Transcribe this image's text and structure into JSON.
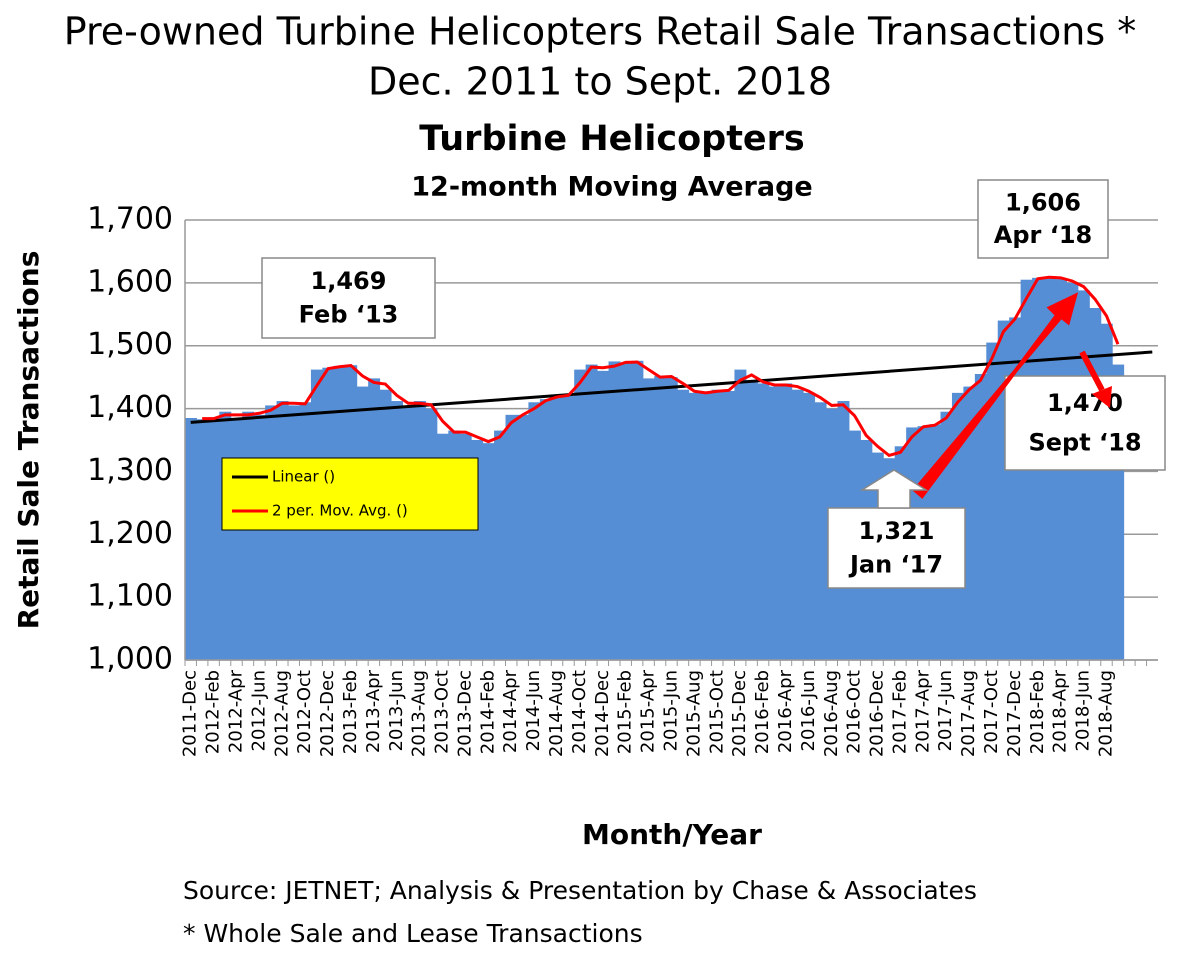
{
  "chart_data": {
    "type": "bar",
    "title": "Pre-owned Turbine Helicopters Retail Sale Transactions *",
    "title_line2": "Dec. 2011 to Sept. 2018",
    "subtitle": "Turbine Helicopters",
    "subtitle2": "12-month Moving Average",
    "y_label": "Retail Sale Transactions",
    "x_label": "Month/Year",
    "source": "Source: JETNET; Analysis & Presentation by Chase & Associates",
    "footnote": "* Whole Sale and Lease Transactions",
    "categories": [
      "2011-Dec",
      null,
      "2012-Feb",
      null,
      "2012-Apr",
      null,
      "2012-Jun",
      null,
      "2012-Aug",
      null,
      "2012-Oct",
      null,
      "2012-Dec",
      null,
      "2013-Feb",
      null,
      "2013-Apr",
      null,
      "2013-Jun",
      null,
      "2013-Aug",
      null,
      "2013-Oct",
      null,
      "2013-Dec",
      null,
      "2014-Feb",
      null,
      "2014-Apr",
      null,
      "2014-Jun",
      null,
      "2014-Aug",
      null,
      "2014-Oct",
      null,
      "2014-Dec",
      null,
      "2015-Feb",
      null,
      "2015-Apr",
      null,
      "2015-Jun",
      null,
      "2015-Aug",
      null,
      "2015-Oct",
      null,
      "2015-Dec",
      null,
      "2016-Feb",
      null,
      "2016-Apr",
      null,
      "2016-Jun",
      null,
      "2016-Aug",
      null,
      "2016-Oct",
      null,
      "2016-Dec",
      null,
      "2017-Feb",
      null,
      "2017-Apr",
      null,
      "2017-Jun",
      null,
      "2017-Aug",
      null,
      "2017-Oct",
      null,
      "2017-Dec",
      null,
      "2018-Feb",
      null,
      "2018-Apr",
      null,
      "2018-Jun",
      null,
      "2018-Aug",
      null,
      null,
      null,
      null
    ],
    "values": [
      1385,
      1383,
      1385,
      1395,
      1385,
      1395,
      1390,
      1405,
      1412,
      1405,
      1410,
      1462,
      1465,
      1468,
      1469,
      1435,
      1448,
      1430,
      1412,
      1405,
      1412,
      1400,
      1360,
      1365,
      1360,
      1350,
      1345,
      1365,
      1390,
      1390,
      1410,
      1415,
      1422,
      1420,
      1462,
      1470,
      1460,
      1475,
      1472,
      1476,
      1448,
      1452,
      1450,
      1430,
      1425,
      1425,
      1430,
      1428,
      1462,
      1445,
      1440,
      1435,
      1440,
      1430,
      1425,
      1410,
      1400,
      1412,
      1365,
      1350,
      1330,
      1321,
      1340,
      1370,
      1372,
      1375,
      1395,
      1425,
      1435,
      1455,
      1505,
      1540,
      1545,
      1605,
      1608,
      1610,
      1606,
      1600,
      1588,
      1560,
      1535,
      1470,
      null,
      null,
      null
    ],
    "color": "#558ed5",
    "series": [
      {
        "name": "2 per. Mov. Avg. ()",
        "color": "#ff0000",
        "values": [
          null,
          1384,
          1384,
          1390,
          1390,
          1390,
          1392.5,
          1397.5,
          1408.5,
          1408.5,
          1407.5,
          1436,
          1463.5,
          1466.5,
          1468.5,
          1452,
          1441.5,
          1439,
          1421,
          1408.5,
          1408.5,
          1406,
          1380,
          1362.5,
          1362.5,
          1355,
          1347.5,
          1355,
          1377.5,
          1390,
          1400,
          1412.5,
          1418.5,
          1421,
          1441,
          1466,
          1465,
          1467.5,
          1473.5,
          1474,
          1462,
          1450,
          1451,
          1440,
          1427.5,
          1425,
          1427.5,
          1429,
          1445,
          1453.5,
          1442.5,
          1437.5,
          1437.5,
          1435,
          1427.5,
          1417.5,
          1405,
          1406,
          1388.5,
          1357.5,
          1340,
          1325.5,
          1330.5,
          1355,
          1371,
          1373.5,
          1385,
          1410,
          1430,
          1445,
          1480,
          1522.5,
          1542.5,
          1575,
          1606.5,
          1609,
          1608,
          1603,
          1594,
          1574,
          1547.5,
          1502.5,
          null,
          null,
          null
        ]
      }
    ],
    "trendline": {
      "name": "Linear ()",
      "color": "#000000",
      "values": [
        1378,
        1490
      ]
    },
    "legend_color": "#ffff00",
    "ylim": [
      1000,
      1700
    ],
    "yticks": [
      {
        "value": 1000,
        "label": "1,000"
      },
      {
        "value": 1100,
        "label": "1,100"
      },
      {
        "value": 1200,
        "label": "1,200"
      },
      {
        "value": 1300,
        "label": "1,300"
      },
      {
        "value": 1400,
        "label": "1,400"
      },
      {
        "value": 1500,
        "label": "1,500"
      },
      {
        "value": 1600,
        "label": "1,600"
      },
      {
        "value": 1700,
        "label": "1,700"
      }
    ],
    "grid": true,
    "annotations": [
      {
        "value": "1,469",
        "date": "Feb ‘13"
      },
      {
        "value": "1,606",
        "date": "Apr ‘18"
      },
      {
        "value": "1,470",
        "date": "Sept ‘18"
      },
      {
        "value": "1,321",
        "date": "Jan ‘17"
      }
    ]
  }
}
